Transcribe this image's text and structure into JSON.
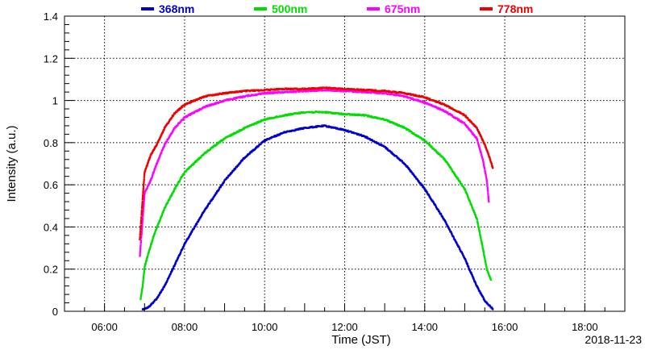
{
  "chart_data": {
    "type": "scatter",
    "title": "",
    "xlabel": "Time (JST)",
    "ylabel": "Intensity (a.u.)",
    "date_label": "2018-11-23",
    "x_unit": "hours (JST)",
    "xlim": [
      5.0,
      19.0
    ],
    "ylim": [
      0.0,
      1.4
    ],
    "x_ticks": [
      6,
      8,
      10,
      12,
      14,
      16,
      18
    ],
    "x_tick_labels": [
      "06:00",
      "08:00",
      "10:00",
      "12:00",
      "14:00",
      "16:00",
      "18:00"
    ],
    "y_ticks": [
      0,
      0.2,
      0.4,
      0.6,
      0.8,
      1.0,
      1.2,
      1.4
    ],
    "y_tick_labels": [
      "0",
      "0.2",
      "0.4",
      "0.6",
      "0.8",
      "1",
      "1.2",
      "1.4"
    ],
    "grid": true,
    "legend_position": "top",
    "series": [
      {
        "name": "368nm",
        "color": "#0000cc",
        "points": [
          [
            6.95,
            0.01
          ],
          [
            7.1,
            0.02
          ],
          [
            7.3,
            0.06
          ],
          [
            7.5,
            0.12
          ],
          [
            7.75,
            0.22
          ],
          [
            8.0,
            0.32
          ],
          [
            8.5,
            0.48
          ],
          [
            9.0,
            0.62
          ],
          [
            9.5,
            0.73
          ],
          [
            10.0,
            0.81
          ],
          [
            10.5,
            0.85
          ],
          [
            11.0,
            0.87
          ],
          [
            11.5,
            0.88
          ],
          [
            12.0,
            0.86
          ],
          [
            12.5,
            0.83
          ],
          [
            13.0,
            0.78
          ],
          [
            13.5,
            0.7
          ],
          [
            14.0,
            0.58
          ],
          [
            14.5,
            0.43
          ],
          [
            15.0,
            0.25
          ],
          [
            15.3,
            0.12
          ],
          [
            15.5,
            0.05
          ],
          [
            15.7,
            0.01
          ]
        ]
      },
      {
        "name": "500nm",
        "color": "#00dd00",
        "points": [
          [
            6.9,
            0.06
          ],
          [
            6.95,
            0.12
          ],
          [
            7.0,
            0.21
          ],
          [
            7.1,
            0.28
          ],
          [
            7.25,
            0.37
          ],
          [
            7.5,
            0.49
          ],
          [
            7.75,
            0.58
          ],
          [
            8.0,
            0.66
          ],
          [
            8.5,
            0.75
          ],
          [
            9.0,
            0.82
          ],
          [
            9.5,
            0.87
          ],
          [
            10.0,
            0.91
          ],
          [
            10.5,
            0.93
          ],
          [
            11.0,
            0.945
          ],
          [
            11.5,
            0.945
          ],
          [
            12.0,
            0.935
          ],
          [
            12.5,
            0.93
          ],
          [
            13.0,
            0.91
          ],
          [
            13.5,
            0.87
          ],
          [
            14.0,
            0.81
          ],
          [
            14.5,
            0.72
          ],
          [
            15.0,
            0.58
          ],
          [
            15.3,
            0.44
          ],
          [
            15.45,
            0.3
          ],
          [
            15.55,
            0.2
          ],
          [
            15.65,
            0.15
          ]
        ]
      },
      {
        "name": "675nm",
        "color": "#ff00ff",
        "points": [
          [
            6.88,
            0.26
          ],
          [
            6.92,
            0.36
          ],
          [
            6.96,
            0.46
          ],
          [
            7.0,
            0.56
          ],
          [
            7.15,
            0.62
          ],
          [
            7.3,
            0.7
          ],
          [
            7.5,
            0.79
          ],
          [
            7.75,
            0.87
          ],
          [
            8.0,
            0.92
          ],
          [
            8.5,
            0.97
          ],
          [
            9.0,
            1.0
          ],
          [
            9.5,
            1.02
          ],
          [
            10.0,
            1.035
          ],
          [
            10.5,
            1.04
          ],
          [
            11.0,
            1.045
          ],
          [
            11.5,
            1.05
          ],
          [
            12.0,
            1.045
          ],
          [
            12.5,
            1.04
          ],
          [
            13.0,
            1.035
          ],
          [
            13.5,
            1.02
          ],
          [
            14.0,
            0.99
          ],
          [
            14.5,
            0.95
          ],
          [
            15.0,
            0.89
          ],
          [
            15.3,
            0.82
          ],
          [
            15.45,
            0.72
          ],
          [
            15.55,
            0.62
          ],
          [
            15.6,
            0.52
          ]
        ]
      },
      {
        "name": "778nm",
        "color": "#ee0000",
        "points": [
          [
            6.88,
            0.34
          ],
          [
            6.92,
            0.45
          ],
          [
            6.96,
            0.56
          ],
          [
            7.0,
            0.66
          ],
          [
            7.15,
            0.74
          ],
          [
            7.3,
            0.79
          ],
          [
            7.5,
            0.87
          ],
          [
            7.75,
            0.94
          ],
          [
            8.0,
            0.98
          ],
          [
            8.5,
            1.02
          ],
          [
            9.0,
            1.035
          ],
          [
            9.5,
            1.045
          ],
          [
            10.0,
            1.05
          ],
          [
            10.5,
            1.055
          ],
          [
            11.0,
            1.055
          ],
          [
            11.5,
            1.06
          ],
          [
            12.0,
            1.055
          ],
          [
            12.5,
            1.05
          ],
          [
            13.0,
            1.045
          ],
          [
            13.5,
            1.035
          ],
          [
            14.0,
            1.015
          ],
          [
            14.5,
            0.98
          ],
          [
            15.0,
            0.93
          ],
          [
            15.3,
            0.87
          ],
          [
            15.5,
            0.79
          ],
          [
            15.6,
            0.74
          ],
          [
            15.7,
            0.68
          ]
        ]
      }
    ]
  }
}
